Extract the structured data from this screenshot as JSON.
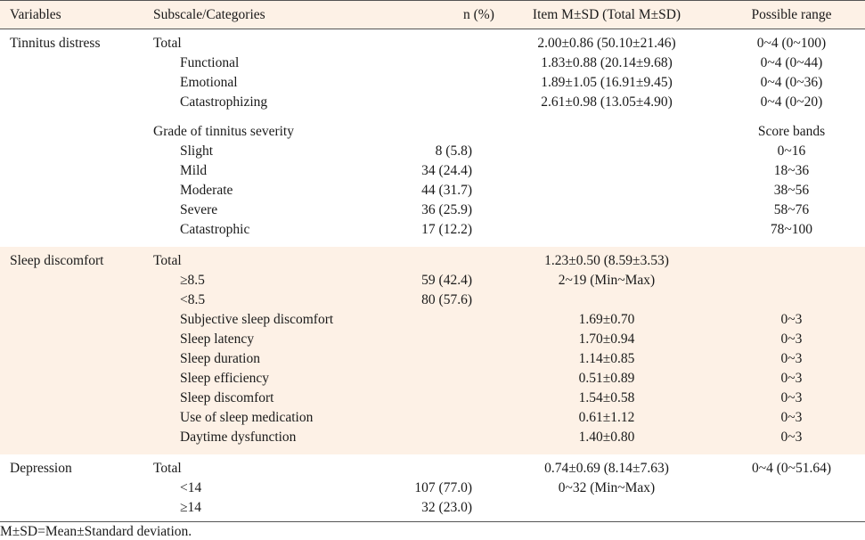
{
  "headers": [
    "Variables",
    "Subscale/Categories",
    "n (%)",
    "Item M±SD (Total M±SD)",
    "Possible range"
  ],
  "tinnitus": {
    "variable": "Tinnitus distress",
    "rows": [
      {
        "sub": "Total",
        "n": "",
        "m": "2.00±0.86 (50.10±21.46)",
        "r": "0~4 (0~100)"
      },
      {
        "sub": "Functional",
        "n": "",
        "m": "1.83±0.88 (20.14±9.68)",
        "r": "0~4 (0~44)"
      },
      {
        "sub": "Emotional",
        "n": "",
        "m": "1.89±1.05 (16.91±9.45)",
        "r": "0~4 (0~36)"
      },
      {
        "sub": "Catastrophizing",
        "n": "",
        "m": "2.61±0.98 (13.05±4.90)",
        "r": "0~4 (0~20)"
      }
    ],
    "grade": {
      "sub": "Grade of tinnitus severity",
      "r": "Score bands"
    },
    "grades": [
      {
        "sub": "Slight",
        "n": "8 (5.8)",
        "m": "",
        "r": "0~16"
      },
      {
        "sub": "Mild",
        "n": "34 (24.4)",
        "m": "",
        "r": "18~36"
      },
      {
        "sub": "Moderate",
        "n": "44 (31.7)",
        "m": "",
        "r": "38~56"
      },
      {
        "sub": "Severe",
        "n": "36 (25.9)",
        "m": "",
        "r": "58~76"
      },
      {
        "sub": "Catastrophic",
        "n": "17 (12.2)",
        "m": "",
        "r": "78~100"
      }
    ]
  },
  "sleep": {
    "variable": "Sleep discomfort",
    "rows": [
      {
        "sub": "Total",
        "n": "",
        "m": "1.23±0.50 (8.59±3.53)",
        "r": ""
      },
      {
        "sub": "≥8.5",
        "n": "59 (42.4)",
        "m": "2~19 (Min~Max)",
        "r": ""
      },
      {
        "sub": "<8.5",
        "n": "80 (57.6)",
        "m": "",
        "r": ""
      },
      {
        "sub": "Subjective sleep discomfort",
        "n": "",
        "m": "1.69±0.70",
        "r": "0~3"
      },
      {
        "sub": "Sleep latency",
        "n": "",
        "m": "1.70±0.94",
        "r": "0~3"
      },
      {
        "sub": "Sleep duration",
        "n": "",
        "m": "1.14±0.85",
        "r": "0~3"
      },
      {
        "sub": "Sleep efficiency",
        "n": "",
        "m": "0.51±0.89",
        "r": "0~3"
      },
      {
        "sub": "Sleep discomfort",
        "n": "",
        "m": "1.54±0.58",
        "r": "0~3"
      },
      {
        "sub": "Use of sleep medication",
        "n": "",
        "m": "0.61±1.12",
        "r": "0~3"
      },
      {
        "sub": "Daytime dysfunction",
        "n": "",
        "m": "1.40±0.80",
        "r": "0~3"
      }
    ]
  },
  "depression": {
    "variable": "Depression",
    "rows": [
      {
        "sub": "Total",
        "n": "",
        "m": "0.74±0.69 (8.14±7.63)",
        "r": "0~4 (0~51.64)"
      },
      {
        "sub": "<14",
        "n": "107 (77.0)",
        "m": "0~32 (Min~Max)",
        "r": ""
      },
      {
        "sub": "≥14",
        "n": "32 (23.0)",
        "m": "",
        "r": ""
      }
    ]
  },
  "note": "M±SD=Mean±Standard deviation."
}
